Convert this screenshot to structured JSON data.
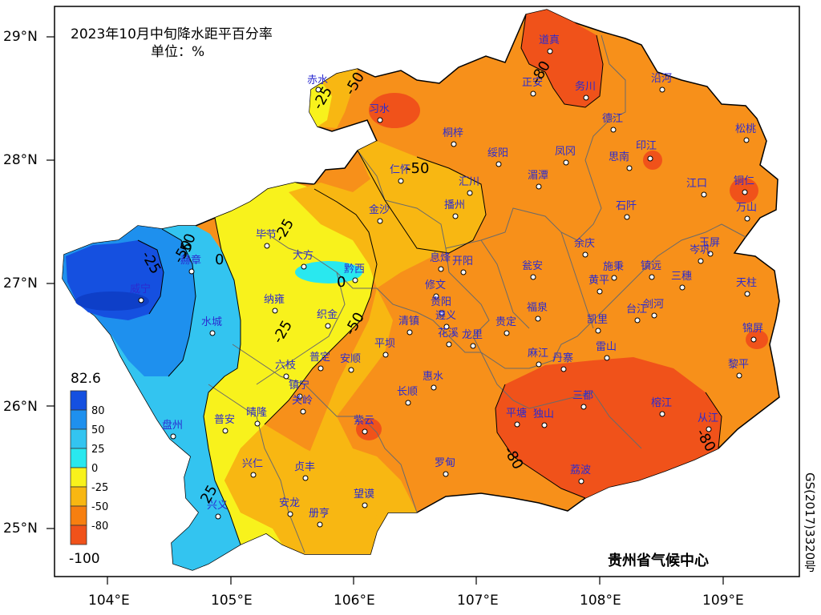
{
  "title": "2023年10月中旬降水距平百分率",
  "unit": "单位：%",
  "credit": "贵州省气候中心",
  "map_code": "GS(2017)3320号",
  "legend": {
    "max": "82.6",
    "min": "-100",
    "levels": [
      {
        "label": "80",
        "color": "#1550e0"
      },
      {
        "label": "50",
        "color": "#1e90ee"
      },
      {
        "label": "25",
        "color": "#33c4f0"
      },
      {
        "label": "0",
        "color": "#29e8ef"
      },
      {
        "label": "-25",
        "color": "#f8f21c"
      },
      {
        "label": "-50",
        "color": "#f8b712"
      },
      {
        "label": "-80",
        "color": "#f77f10"
      },
      {
        "label": "",
        "color": "#f0521a"
      }
    ]
  },
  "axes": {
    "y_ticks": [
      "29°N",
      "28°N",
      "27°N",
      "26°N",
      "25°N"
    ],
    "x_ticks": [
      "104°E",
      "105°E",
      "106°E",
      "107°E",
      "108°E",
      "109°E"
    ]
  },
  "contour_labels": [
    "-25",
    "-50",
    "-80",
    "-50",
    "-25",
    "0",
    "-25",
    "-50",
    "-80",
    "-80",
    "-25",
    "0",
    "-50",
    "-50",
    "25"
  ],
  "stations": [
    "赤水",
    "习水",
    "桐梓",
    "绥阳",
    "正安",
    "道真",
    "务川",
    "沿河",
    "德江",
    "凤冈",
    "湄潭",
    "思南",
    "印江",
    "松桃",
    "江口",
    "铜仁",
    "万山",
    "石阡",
    "余庆",
    "施秉",
    "镇远",
    "岑巩",
    "玉屏",
    "三穗",
    "天柱",
    "黄平",
    "剑河",
    "台江",
    "凯里",
    "锦屏",
    "黎平",
    "雷山",
    "丹寨",
    "三都",
    "榕江",
    "从江",
    "荔波",
    "独山",
    "平塘",
    "麻江",
    "福泉",
    "瓮安",
    "贵定",
    "龙里",
    "贵阳",
    "修文",
    "息烽",
    "开阳",
    "遵义",
    "汇川",
    "播州",
    "金沙",
    "仁怀",
    "毕节",
    "大方",
    "黔西",
    "织金",
    "纳雍",
    "赫章",
    "威宁",
    "水城",
    "六枝",
    "普定",
    "安顺",
    "平坝",
    "清镇",
    "花溪",
    "惠水",
    "长顺",
    "罗甸",
    "镇宁",
    "关岭",
    "晴隆",
    "普安",
    "盘州",
    "兴仁",
    "贞丰",
    "兴义",
    "安龙",
    "册亨",
    "望谟",
    "紫云"
  ]
}
